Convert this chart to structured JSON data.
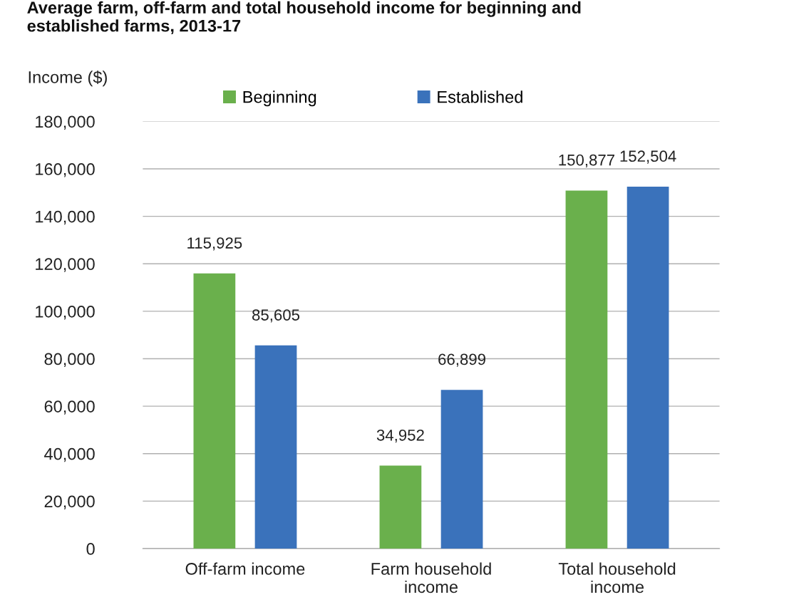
{
  "chart_data": {
    "type": "bar",
    "title": "Average farm, off-farm and total household income for beginning and\nestablished farms, 2013-17",
    "ylabel": "Income ($)",
    "categories": [
      "Off-farm income",
      "Farm household\nincome",
      "Total household\nincome"
    ],
    "series": [
      {
        "name": "Beginning",
        "color": "#6ab04c",
        "values": [
          115925,
          34952,
          150877
        ],
        "value_labels": [
          "115,925",
          "34,952",
          "150,877"
        ]
      },
      {
        "name": "Established",
        "color": "#3a72bb",
        "values": [
          85605,
          66899,
          152504
        ],
        "value_labels": [
          "85,605",
          "66,899",
          "152,504"
        ]
      }
    ],
    "ylim": [
      0,
      180000
    ],
    "yticks": [
      0,
      {
        "value": 20000,
        "label": "20,000"
      },
      {
        "value": 40000,
        "label": "40,000"
      },
      {
        "value": 60000,
        "label": "60,000"
      },
      {
        "value": 80000,
        "label": "80,000"
      },
      {
        "value": 100000,
        "label": "100,000"
      },
      {
        "value": 120000,
        "label": "120,000"
      },
      {
        "value": 140000,
        "label": "140,000"
      },
      {
        "value": 160000,
        "label": "160,000"
      },
      {
        "value": 180000,
        "label": "180,000"
      }
    ],
    "grid": "y",
    "legend": "top"
  }
}
